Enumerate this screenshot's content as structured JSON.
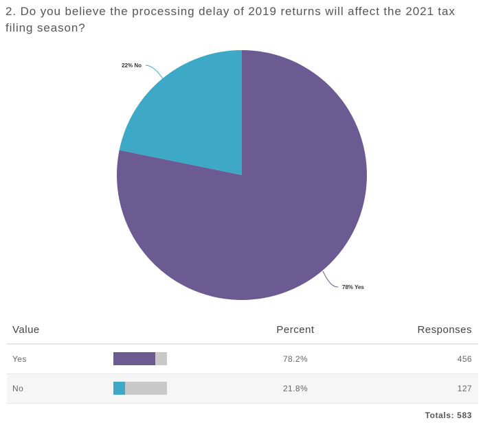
{
  "question": {
    "text": "2. Do you believe the processing delay of 2019 returns will affect the 2021 tax filing season?"
  },
  "chart_data": {
    "type": "pie",
    "title": "",
    "slices": [
      {
        "label": "78% Yes",
        "category": "Yes",
        "percent": 78.2,
        "color": "#6c5a93"
      },
      {
        "label": "22% No",
        "category": "No",
        "percent": 21.8,
        "color": "#3da9c7"
      }
    ]
  },
  "table": {
    "headers": {
      "value": "Value",
      "percent": "Percent",
      "responses": "Responses"
    },
    "rows": [
      {
        "value": "Yes",
        "percent_text": "78.2%",
        "percent": 78.2,
        "responses": "456",
        "color": "#6c5a93"
      },
      {
        "value": "No",
        "percent_text": "21.8%",
        "percent": 21.8,
        "responses": "127",
        "color": "#3da9c7"
      }
    ],
    "totals": "Totals: 583"
  }
}
